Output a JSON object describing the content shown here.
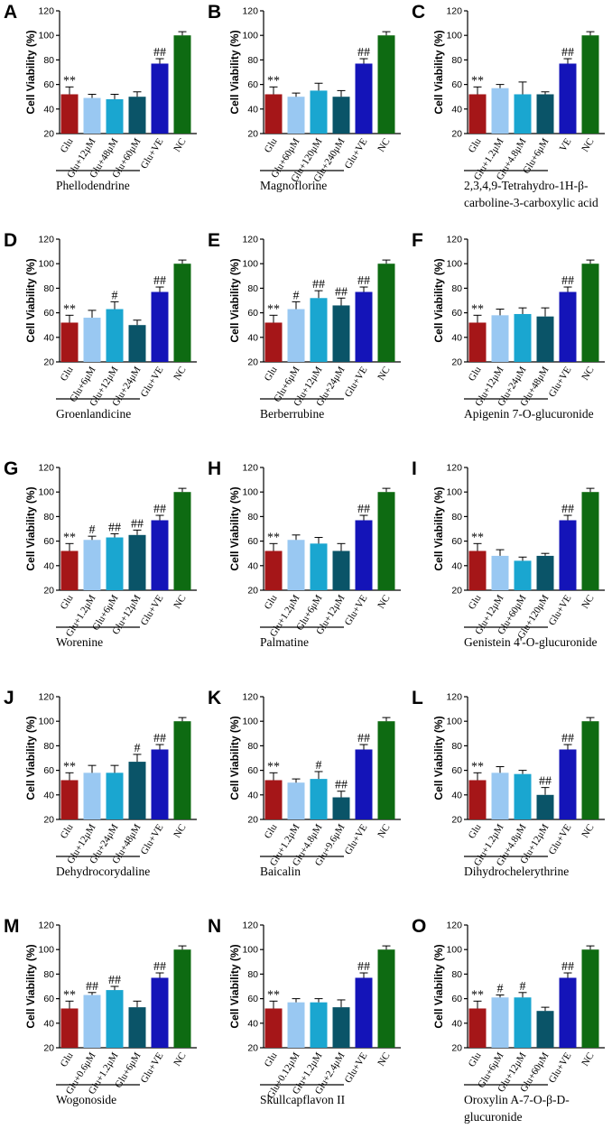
{
  "figure": {
    "ylabel": "Cell Viability (%)",
    "colors": [
      "#a51618",
      "#99c8f2",
      "#1aa6d0",
      "#0a5468",
      "#1414b8",
      "#0e6b12"
    ]
  },
  "chart_data": [
    {
      "type": "bar",
      "panel": "A",
      "compound_label": [
        "Phellodendrine"
      ],
      "categories": [
        "Glu",
        "Glu+12μM",
        "Glu+48μM",
        "Glu+60μM",
        "Glu+VE",
        "NC"
      ],
      "values": [
        52,
        49,
        48,
        50,
        77,
        100
      ],
      "errors": [
        6,
        3,
        4,
        4,
        4,
        3
      ],
      "sig": [
        "**",
        "",
        "",
        "",
        "##",
        ""
      ],
      "ylabel": "Cell Viability (%)",
      "ylim": [
        20,
        120
      ],
      "yticks": [
        20,
        40,
        60,
        80,
        100,
        120
      ]
    },
    {
      "type": "bar",
      "panel": "B",
      "compound_label": [
        "Magnoflorine"
      ],
      "categories": [
        "Glu",
        "Glu+60μM",
        "Glu+120μM",
        "Glu+240μM",
        "Glu+VE",
        "NC"
      ],
      "values": [
        52,
        50,
        55,
        50,
        77,
        100
      ],
      "errors": [
        6,
        3,
        6,
        5,
        4,
        3
      ],
      "sig": [
        "**",
        "",
        "",
        "",
        "##",
        ""
      ],
      "ylabel": "Cell Viability (%)",
      "ylim": [
        20,
        120
      ],
      "yticks": [
        20,
        40,
        60,
        80,
        100,
        120
      ]
    },
    {
      "type": "bar",
      "panel": "C",
      "compound_label": [
        "2,3,4,9-Tetrahydro-1H-β-",
        "carboline-3-carboxylic acid"
      ],
      "categories": [
        "Glu",
        "Glu+1.2μM",
        "Glu+4.8μM",
        "Glu+6μM",
        "VE",
        "NC"
      ],
      "values": [
        52,
        57,
        52,
        52,
        77,
        100
      ],
      "errors": [
        6,
        3,
        10,
        2,
        4,
        3
      ],
      "sig": [
        "**",
        "",
        "",
        "",
        "##",
        ""
      ],
      "ylabel": "Cell Viability (%)",
      "ylim": [
        20,
        120
      ],
      "yticks": [
        20,
        40,
        60,
        80,
        100,
        120
      ]
    },
    {
      "type": "bar",
      "panel": "D",
      "compound_label": [
        "Groenlandicine"
      ],
      "categories": [
        "Glu",
        "Glu+6μM",
        "Glu+12μM",
        "Glu+24μM",
        "Glu+VE",
        "NC"
      ],
      "values": [
        52,
        56,
        63,
        50,
        77,
        100
      ],
      "errors": [
        6,
        6,
        6,
        4,
        4,
        3
      ],
      "sig": [
        "**",
        "",
        "#",
        "",
        "##",
        ""
      ],
      "ylabel": "Cell Viability (%)",
      "ylim": [
        20,
        120
      ],
      "yticks": [
        20,
        40,
        60,
        80,
        100,
        120
      ]
    },
    {
      "type": "bar",
      "panel": "E",
      "compound_label": [
        "Berberrubine"
      ],
      "categories": [
        "Glu",
        "Glu+6μM",
        "Glu+12μM",
        "Glu+24μM",
        "Glu+VE",
        "NC"
      ],
      "values": [
        52,
        63,
        72,
        66,
        77,
        100
      ],
      "errors": [
        6,
        6,
        6,
        6,
        4,
        3
      ],
      "sig": [
        "**",
        "#",
        "##",
        "##",
        "##",
        ""
      ],
      "ylabel": "Cell Viability (%)",
      "ylim": [
        20,
        120
      ],
      "yticks": [
        20,
        40,
        60,
        80,
        100,
        120
      ]
    },
    {
      "type": "bar",
      "panel": "F",
      "compound_label": [
        "Apigenin 7-O-glucuronide"
      ],
      "categories": [
        "Glu",
        "Glu+12μM",
        "Glu+24μM",
        "Glu+48μM",
        "Glu+VE",
        "NC"
      ],
      "values": [
        52,
        58,
        59,
        57,
        77,
        100
      ],
      "errors": [
        6,
        5,
        5,
        7,
        4,
        3
      ],
      "sig": [
        "**",
        "",
        "",
        "",
        "##",
        ""
      ],
      "ylabel": "Cell Viability (%)",
      "ylim": [
        20,
        120
      ],
      "yticks": [
        20,
        40,
        60,
        80,
        100,
        120
      ]
    },
    {
      "type": "bar",
      "panel": "G",
      "compound_label": [
        "Worenine"
      ],
      "categories": [
        "Glu",
        "Glu+1.2μM",
        "Glu+6μM",
        "Glu+12μM",
        "Glu+VE",
        "NC"
      ],
      "values": [
        52,
        61,
        63,
        65,
        77,
        100
      ],
      "errors": [
        6,
        3,
        3,
        4,
        4,
        3
      ],
      "sig": [
        "**",
        "#",
        "##",
        "##",
        "##",
        ""
      ],
      "ylabel": "Cell Viability (%)",
      "ylim": [
        20,
        120
      ],
      "yticks": [
        20,
        40,
        60,
        80,
        100,
        120
      ]
    },
    {
      "type": "bar",
      "panel": "H",
      "compound_label": [
        "Palmatine"
      ],
      "categories": [
        "Glu",
        "Glu+1.2μM",
        "Glu+6μM",
        "Glu+12μM",
        "Glu+VE",
        "NC"
      ],
      "values": [
        52,
        61,
        58,
        52,
        77,
        100
      ],
      "errors": [
        6,
        4,
        5,
        6,
        4,
        3
      ],
      "sig": [
        "**",
        "",
        "",
        "",
        "##",
        ""
      ],
      "ylabel": "Cell Viability (%)",
      "ylim": [
        20,
        120
      ],
      "yticks": [
        20,
        40,
        60,
        80,
        100,
        120
      ]
    },
    {
      "type": "bar",
      "panel": "I",
      "compound_label": [
        "Genistein 4'-O-glucuronide"
      ],
      "categories": [
        "Glu",
        "Glu+12μM",
        "Glu+60μM",
        "Glu+120μM",
        "Glu+VE",
        "NC"
      ],
      "values": [
        52,
        48,
        44,
        48,
        77,
        100
      ],
      "errors": [
        6,
        5,
        3,
        2,
        4,
        3
      ],
      "sig": [
        "**",
        "",
        "",
        "",
        "##",
        ""
      ],
      "ylabel": "Cell Viability (%)",
      "ylim": [
        20,
        120
      ],
      "yticks": [
        20,
        40,
        60,
        80,
        100,
        120
      ]
    },
    {
      "type": "bar",
      "panel": "J",
      "compound_label": [
        "Dehydrocorydaline"
      ],
      "categories": [
        "Glu",
        "Glu+12μM",
        "Glu+24μM",
        "Glu+48μM",
        "Glu+VE",
        "NC"
      ],
      "values": [
        52,
        58,
        58,
        67,
        77,
        100
      ],
      "errors": [
        6,
        6,
        6,
        6,
        4,
        3
      ],
      "sig": [
        "**",
        "",
        "",
        "#",
        "##",
        ""
      ],
      "ylabel": "Cell Viability (%)",
      "ylim": [
        20,
        120
      ],
      "yticks": [
        20,
        40,
        60,
        80,
        100,
        120
      ]
    },
    {
      "type": "bar",
      "panel": "K",
      "compound_label": [
        "Baicalin"
      ],
      "categories": [
        "Glu",
        "Glu+1.2μM",
        "Glu+4.8μM",
        "Glu+9.6μM",
        "Glu+VE",
        "NC"
      ],
      "values": [
        52,
        50,
        53,
        38,
        77,
        100
      ],
      "errors": [
        6,
        3,
        6,
        5,
        4,
        3
      ],
      "sig": [
        "**",
        "",
        "#",
        "##",
        "##",
        ""
      ],
      "ylabel": "Cell Viability (%)",
      "ylim": [
        20,
        120
      ],
      "yticks": [
        20,
        40,
        60,
        80,
        100,
        120
      ]
    },
    {
      "type": "bar",
      "panel": "L",
      "compound_label": [
        "Dihydrochelerythrine"
      ],
      "categories": [
        "Glu",
        "Glu+1.2μM",
        "Glu+4.8μM",
        "Glu+12μM",
        "Glu+VE",
        "NC"
      ],
      "values": [
        52,
        58,
        57,
        40,
        77,
        100
      ],
      "errors": [
        6,
        5,
        3,
        6,
        4,
        3
      ],
      "sig": [
        "**",
        "",
        "",
        "##",
        "##",
        ""
      ],
      "ylabel": "Cell Viability (%)",
      "ylim": [
        20,
        120
      ],
      "yticks": [
        20,
        40,
        60,
        80,
        100,
        120
      ]
    },
    {
      "type": "bar",
      "panel": "M",
      "compound_label": [
        "Wogonoside"
      ],
      "categories": [
        "Glu",
        "Glu+0.6μM",
        "Glu+1.2μM",
        "Glu+6μM",
        "Glu+VE",
        "NC"
      ],
      "values": [
        52,
        63,
        67,
        53,
        77,
        100
      ],
      "errors": [
        6,
        2,
        3,
        5,
        4,
        3
      ],
      "sig": [
        "**",
        "##",
        "##",
        "",
        "##",
        ""
      ],
      "ylabel": "Cell Viability (%)",
      "ylim": [
        20,
        120
      ],
      "yticks": [
        20,
        40,
        60,
        80,
        100,
        120
      ]
    },
    {
      "type": "bar",
      "panel": "N",
      "compound_label": [
        "Skullcapflavon II"
      ],
      "categories": [
        "Glu",
        "Glu+0.12μM",
        "Glu+1.2μM",
        "Glu+2.4μM",
        "Glu+VE",
        "NC"
      ],
      "values": [
        52,
        57,
        57,
        53,
        77,
        100
      ],
      "errors": [
        6,
        3,
        3,
        6,
        4,
        3
      ],
      "sig": [
        "**",
        "",
        "",
        "",
        "##",
        ""
      ],
      "ylabel": "Cell Viability (%)",
      "ylim": [
        20,
        120
      ],
      "yticks": [
        20,
        40,
        60,
        80,
        100,
        120
      ]
    },
    {
      "type": "bar",
      "panel": "O",
      "compound_label": [
        "Oroxylin A-7-O-β-D-",
        "glucuronide"
      ],
      "categories": [
        "Glu",
        "Glu+6μM",
        "Glu+12μM",
        "Glu+60μM",
        "Glu+VE",
        "NC"
      ],
      "values": [
        52,
        61,
        61,
        50,
        77,
        100
      ],
      "errors": [
        6,
        2,
        4,
        3,
        4,
        3
      ],
      "sig": [
        "**",
        "#",
        "#",
        "",
        "##",
        ""
      ],
      "ylabel": "Cell Viability (%)",
      "ylim": [
        20,
        120
      ],
      "yticks": [
        20,
        40,
        60,
        80,
        100,
        120
      ]
    }
  ]
}
